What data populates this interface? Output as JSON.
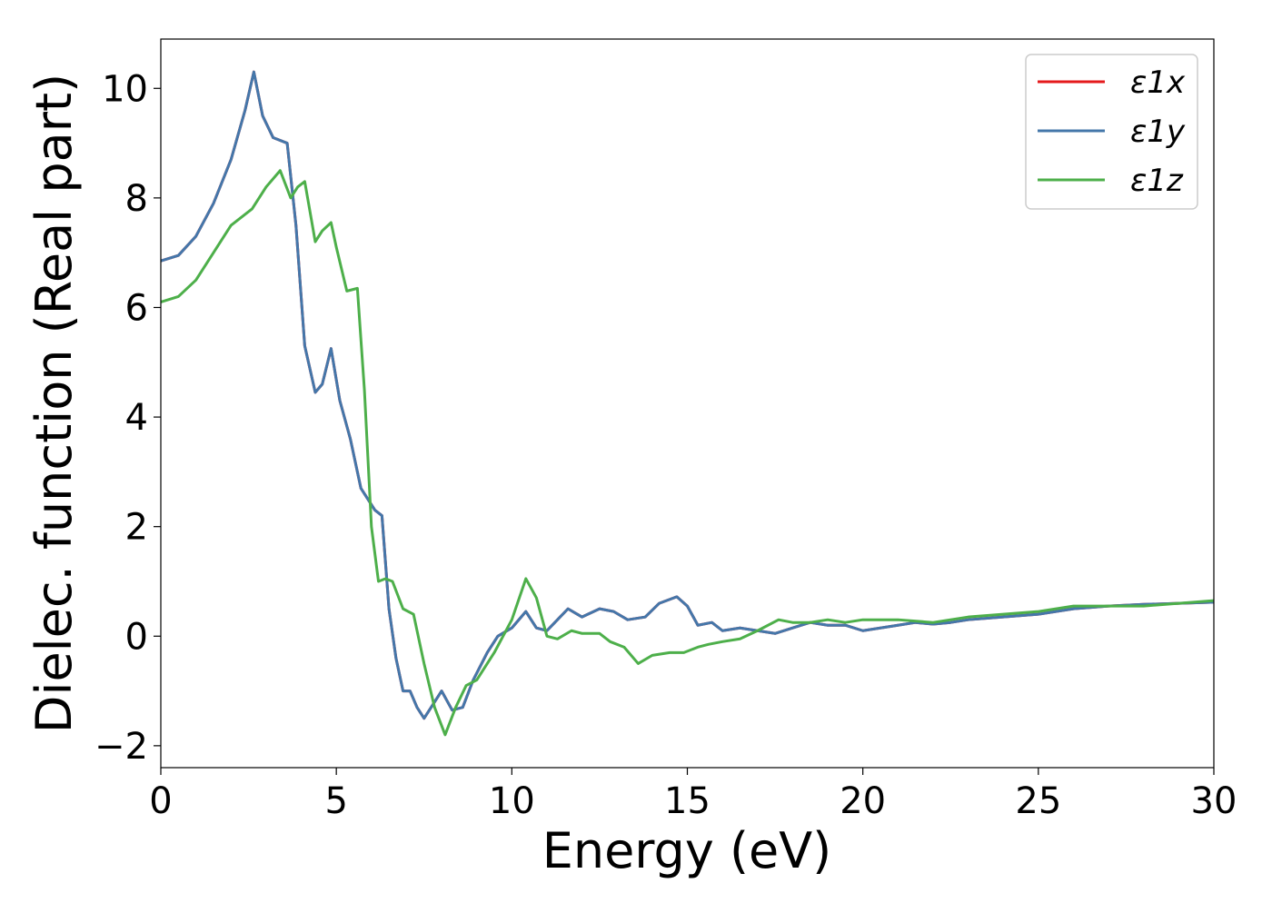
{
  "chart_data": {
    "type": "line",
    "title": "",
    "xlabel": "Energy (eV)",
    "ylabel": "Dielec. function (Real part)",
    "xlim": [
      0,
      30
    ],
    "ylim": [
      -2.4,
      10.9
    ],
    "xticks": [
      0,
      5,
      10,
      15,
      20,
      25,
      30
    ],
    "xtick_labels": [
      "0",
      "5",
      "10",
      "15",
      "20",
      "25",
      "30"
    ],
    "yticks": [
      -2,
      0,
      2,
      4,
      6,
      8,
      10
    ],
    "ytick_labels": [
      "−2",
      "0",
      "2",
      "4",
      "6",
      "8",
      "10"
    ],
    "grid": false,
    "legend_position": "top-right",
    "series": [
      {
        "name": "ε1x",
        "color": "#e41a1c",
        "x": [
          0,
          0.5,
          1.0,
          1.5,
          2.0,
          2.4,
          2.65,
          2.9,
          3.2,
          3.6,
          3.85,
          4.1,
          4.4,
          4.6,
          4.85,
          5.1,
          5.4,
          5.7,
          6.1,
          6.3,
          6.5,
          6.7,
          6.9,
          7.1,
          7.3,
          7.5,
          7.7,
          8.0,
          8.3,
          8.6,
          8.9,
          9.3,
          9.6,
          10.0,
          10.4,
          10.7,
          11.0,
          11.3,
          11.6,
          12.0,
          12.5,
          12.9,
          13.3,
          13.8,
          14.2,
          14.7,
          15.0,
          15.3,
          15.7,
          16.0,
          16.5,
          17.0,
          17.5,
          18.0,
          18.5,
          19.0,
          19.5,
          20.0,
          20.5,
          21.0,
          21.5,
          22.0,
          22.5,
          23.0,
          24.0,
          25.0,
          26.0,
          27.0,
          28.0,
          29.0,
          30.0
        ],
        "values": [
          6.85,
          6.95,
          7.3,
          7.9,
          8.7,
          9.6,
          10.3,
          9.5,
          9.1,
          9.0,
          7.5,
          5.3,
          4.45,
          4.6,
          5.25,
          4.3,
          3.6,
          2.7,
          2.3,
          2.2,
          0.5,
          -0.4,
          -1.0,
          -1.0,
          -1.3,
          -1.5,
          -1.3,
          -1.0,
          -1.35,
          -1.3,
          -0.8,
          -0.3,
          0.0,
          0.15,
          0.45,
          0.15,
          0.1,
          0.3,
          0.5,
          0.35,
          0.5,
          0.45,
          0.3,
          0.35,
          0.6,
          0.72,
          0.55,
          0.2,
          0.25,
          0.1,
          0.15,
          0.1,
          0.05,
          0.15,
          0.25,
          0.2,
          0.2,
          0.1,
          0.15,
          0.2,
          0.25,
          0.22,
          0.25,
          0.3,
          0.35,
          0.4,
          0.5,
          0.55,
          0.58,
          0.6,
          0.62
        ]
      },
      {
        "name": "ε1y",
        "color": "#4477aa",
        "x": [
          0,
          0.5,
          1.0,
          1.5,
          2.0,
          2.4,
          2.65,
          2.9,
          3.2,
          3.6,
          3.85,
          4.1,
          4.4,
          4.6,
          4.85,
          5.1,
          5.4,
          5.7,
          6.1,
          6.3,
          6.5,
          6.7,
          6.9,
          7.1,
          7.3,
          7.5,
          7.7,
          8.0,
          8.3,
          8.6,
          8.9,
          9.3,
          9.6,
          10.0,
          10.4,
          10.7,
          11.0,
          11.3,
          11.6,
          12.0,
          12.5,
          12.9,
          13.3,
          13.8,
          14.2,
          14.7,
          15.0,
          15.3,
          15.7,
          16.0,
          16.5,
          17.0,
          17.5,
          18.0,
          18.5,
          19.0,
          19.5,
          20.0,
          20.5,
          21.0,
          21.5,
          22.0,
          22.5,
          23.0,
          24.0,
          25.0,
          26.0,
          27.0,
          28.0,
          29.0,
          30.0
        ],
        "values": [
          6.85,
          6.95,
          7.3,
          7.9,
          8.7,
          9.6,
          10.3,
          9.5,
          9.1,
          9.0,
          7.5,
          5.3,
          4.45,
          4.6,
          5.25,
          4.3,
          3.6,
          2.7,
          2.3,
          2.2,
          0.5,
          -0.4,
          -1.0,
          -1.0,
          -1.3,
          -1.5,
          -1.3,
          -1.0,
          -1.35,
          -1.3,
          -0.8,
          -0.3,
          0.0,
          0.15,
          0.45,
          0.15,
          0.1,
          0.3,
          0.5,
          0.35,
          0.5,
          0.45,
          0.3,
          0.35,
          0.6,
          0.72,
          0.55,
          0.2,
          0.25,
          0.1,
          0.15,
          0.1,
          0.05,
          0.15,
          0.25,
          0.2,
          0.2,
          0.1,
          0.15,
          0.2,
          0.25,
          0.22,
          0.25,
          0.3,
          0.35,
          0.4,
          0.5,
          0.55,
          0.58,
          0.6,
          0.62
        ]
      },
      {
        "name": "ε1z",
        "color": "#4daf4a",
        "x": [
          0,
          0.5,
          1.0,
          1.5,
          2.0,
          2.6,
          3.0,
          3.4,
          3.7,
          3.9,
          4.1,
          4.4,
          4.6,
          4.85,
          5.0,
          5.3,
          5.6,
          5.8,
          6.0,
          6.2,
          6.4,
          6.6,
          6.9,
          7.2,
          7.5,
          7.8,
          8.1,
          8.4,
          8.7,
          9.0,
          9.5,
          10.0,
          10.4,
          10.7,
          11.0,
          11.3,
          11.7,
          12.0,
          12.5,
          12.8,
          13.2,
          13.6,
          14.0,
          14.5,
          14.9,
          15.3,
          15.6,
          16.0,
          16.5,
          17.0,
          17.6,
          18.0,
          18.5,
          19.0,
          19.5,
          20.0,
          21.0,
          22.0,
          23.0,
          24.0,
          25.0,
          26.0,
          27.0,
          28.0,
          29.0,
          30.0
        ],
        "values": [
          6.1,
          6.2,
          6.5,
          7.0,
          7.5,
          7.8,
          8.2,
          8.5,
          8.0,
          8.2,
          8.3,
          7.2,
          7.4,
          7.55,
          7.1,
          6.3,
          6.35,
          4.5,
          2.0,
          1.0,
          1.05,
          1.0,
          0.5,
          0.4,
          -0.5,
          -1.3,
          -1.8,
          -1.3,
          -0.9,
          -0.8,
          -0.3,
          0.3,
          1.05,
          0.7,
          0.0,
          -0.05,
          0.1,
          0.05,
          0.05,
          -0.1,
          -0.2,
          -0.5,
          -0.35,
          -0.3,
          -0.3,
          -0.2,
          -0.15,
          -0.1,
          -0.05,
          0.1,
          0.3,
          0.25,
          0.25,
          0.3,
          0.25,
          0.3,
          0.3,
          0.25,
          0.35,
          0.4,
          0.45,
          0.55,
          0.55,
          0.55,
          0.6,
          0.65
        ]
      }
    ]
  }
}
